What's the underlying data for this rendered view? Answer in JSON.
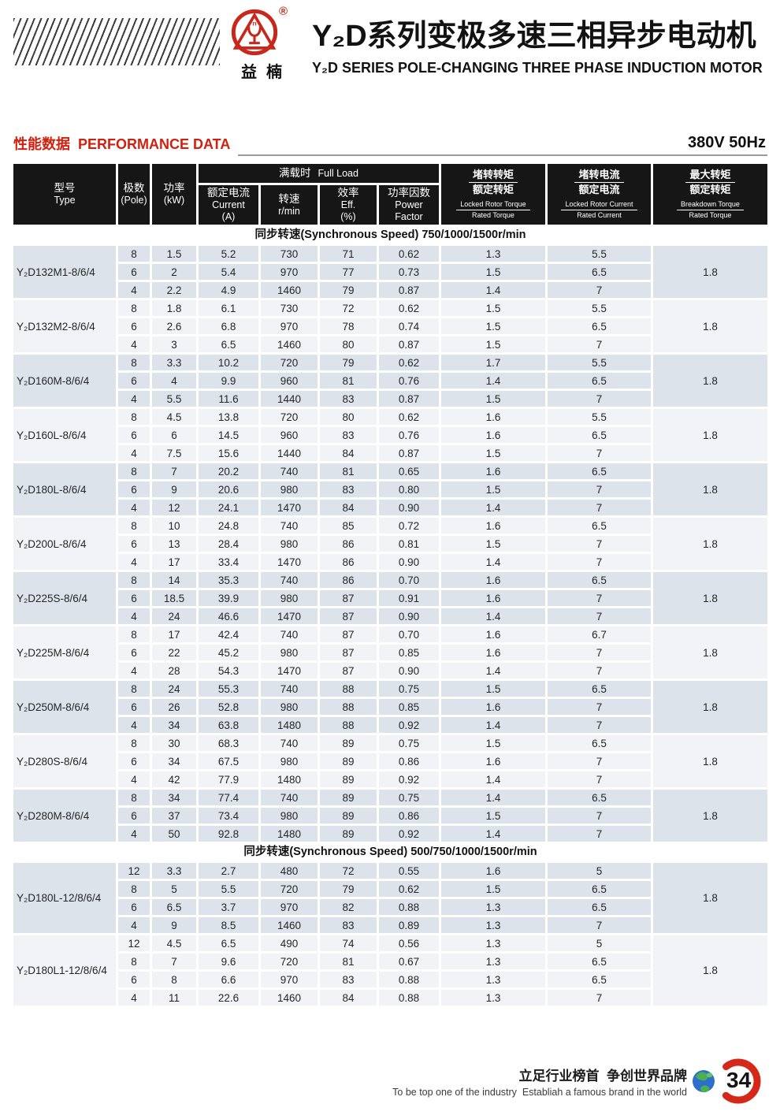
{
  "header": {
    "brand_name": "益楠",
    "registered": "®",
    "logo_letter": "n",
    "title_zh": "Y₂D系列变极多速三相异步电动机",
    "title_en": "Y₂D SERIES POLE-CHANGING THREE PHASE INDUCTION MOTOR"
  },
  "section_heading": {
    "zh": "性能数据",
    "en": "PERFORMANCE DATA",
    "rating": "380V 50Hz"
  },
  "table": {
    "columns": {
      "type": {
        "zh": "型号",
        "en": "Type"
      },
      "pole": {
        "zh": "极数",
        "en": "(Pole)"
      },
      "power": {
        "zh": "功率",
        "en": "(kW)"
      },
      "full_load": {
        "zh": "满载时",
        "en": "Full Load"
      },
      "current": {
        "zh": "额定电流",
        "en": "Current",
        "unit": "(A)"
      },
      "speed": {
        "zh": "转速",
        "en": "r/min"
      },
      "efficiency": {
        "zh": "效率",
        "en": "Eff.",
        "unit": "(%)"
      },
      "power_factor": {
        "zh": "功率因数",
        "en1": "Power",
        "en2": "Factor"
      },
      "locked_rotor_torque": {
        "zh_num": "堵转转矩",
        "zh_den": "额定转矩",
        "en_num": "Locked Rotor Torque",
        "en_den": "Rated Torque"
      },
      "locked_rotor_current": {
        "zh_num": "堵转电流",
        "zh_den": "额定电流",
        "en_num": "Locked Rotor Current",
        "en_den": "Rated Current"
      },
      "breakdown_torque": {
        "zh_num": "最大转矩",
        "zh_den": "额定转矩",
        "en_num": "Breakdown Torque",
        "en_den": "Rated Torque"
      }
    },
    "sections": [
      {
        "speed_note": "同步转速(Synchronous Speed) 750/1000/1500r/min",
        "groups": [
          {
            "type": "Y₂D132M1-8/6/4",
            "max_torque": "1.8",
            "rows": [
              [
                "8",
                "1.5",
                "5.2",
                "730",
                "71",
                "0.62",
                "1.3",
                "5.5"
              ],
              [
                "6",
                "2",
                "5.4",
                "970",
                "77",
                "0.73",
                "1.5",
                "6.5"
              ],
              [
                "4",
                "2.2",
                "4.9",
                "1460",
                "79",
                "0.87",
                "1.4",
                "7"
              ]
            ]
          },
          {
            "type": "Y₂D132M2-8/6/4",
            "max_torque": "1.8",
            "rows": [
              [
                "8",
                "1.8",
                "6.1",
                "730",
                "72",
                "0.62",
                "1.5",
                "5.5"
              ],
              [
                "6",
                "2.6",
                "6.8",
                "970",
                "78",
                "0.74",
                "1.5",
                "6.5"
              ],
              [
                "4",
                "3",
                "6.5",
                "1460",
                "80",
                "0.87",
                "1.5",
                "7"
              ]
            ]
          },
          {
            "type": "Y₂D160M-8/6/4",
            "max_torque": "1.8",
            "rows": [
              [
                "8",
                "3.3",
                "10.2",
                "720",
                "79",
                "0.62",
                "1.7",
                "5.5"
              ],
              [
                "6",
                "4",
                "9.9",
                "960",
                "81",
                "0.76",
                "1.4",
                "6.5"
              ],
              [
                "4",
                "5.5",
                "11.6",
                "1440",
                "83",
                "0.87",
                "1.5",
                "7"
              ]
            ]
          },
          {
            "type": "Y₂D160L-8/6/4",
            "max_torque": "1.8",
            "rows": [
              [
                "8",
                "4.5",
                "13.8",
                "720",
                "80",
                "0.62",
                "1.6",
                "5.5"
              ],
              [
                "6",
                "6",
                "14.5",
                "960",
                "83",
                "0.76",
                "1.6",
                "6.5"
              ],
              [
                "4",
                "7.5",
                "15.6",
                "1440",
                "84",
                "0.87",
                "1.5",
                "7"
              ]
            ]
          },
          {
            "type": "Y₂D180L-8/6/4",
            "max_torque": "1.8",
            "rows": [
              [
                "8",
                "7",
                "20.2",
                "740",
                "81",
                "0.65",
                "1.6",
                "6.5"
              ],
              [
                "6",
                "9",
                "20.6",
                "980",
                "83",
                "0.80",
                "1.5",
                "7"
              ],
              [
                "4",
                "12",
                "24.1",
                "1470",
                "84",
                "0.90",
                "1.4",
                "7"
              ]
            ]
          },
          {
            "type": "Y₂D200L-8/6/4",
            "max_torque": "1.8",
            "rows": [
              [
                "8",
                "10",
                "24.8",
                "740",
                "85",
                "0.72",
                "1.6",
                "6.5"
              ],
              [
                "6",
                "13",
                "28.4",
                "980",
                "86",
                "0.81",
                "1.5",
                "7"
              ],
              [
                "4",
                "17",
                "33.4",
                "1470",
                "86",
                "0.90",
                "1.4",
                "7"
              ]
            ]
          },
          {
            "type": "Y₂D225S-8/6/4",
            "max_torque": "1.8",
            "rows": [
              [
                "8",
                "14",
                "35.3",
                "740",
                "86",
                "0.70",
                "1.6",
                "6.5"
              ],
              [
                "6",
                "18.5",
                "39.9",
                "980",
                "87",
                "0.91",
                "1.6",
                "7"
              ],
              [
                "4",
                "24",
                "46.6",
                "1470",
                "87",
                "0.90",
                "1.4",
                "7"
              ]
            ]
          },
          {
            "type": "Y₂D225M-8/6/4",
            "max_torque": "1.8",
            "rows": [
              [
                "8",
                "17",
                "42.4",
                "740",
                "87",
                "0.70",
                "1.6",
                "6.7"
              ],
              [
                "6",
                "22",
                "45.2",
                "980",
                "87",
                "0.85",
                "1.6",
                "7"
              ],
              [
                "4",
                "28",
                "54.3",
                "1470",
                "87",
                "0.90",
                "1.4",
                "7"
              ]
            ]
          },
          {
            "type": "Y₂D250M-8/6/4",
            "max_torque": "1.8",
            "rows": [
              [
                "8",
                "24",
                "55.3",
                "740",
                "88",
                "0.75",
                "1.5",
                "6.5"
              ],
              [
                "6",
                "26",
                "52.8",
                "980",
                "88",
                "0.85",
                "1.6",
                "7"
              ],
              [
                "4",
                "34",
                "63.8",
                "1480",
                "88",
                "0.92",
                "1.4",
                "7"
              ]
            ]
          },
          {
            "type": "Y₂D280S-8/6/4",
            "max_torque": "1.8",
            "rows": [
              [
                "8",
                "30",
                "68.3",
                "740",
                "89",
                "0.75",
                "1.5",
                "6.5"
              ],
              [
                "6",
                "34",
                "67.5",
                "980",
                "89",
                "0.86",
                "1.6",
                "7"
              ],
              [
                "4",
                "42",
                "77.9",
                "1480",
                "89",
                "0.92",
                "1.4",
                "7"
              ]
            ]
          },
          {
            "type": "Y₂D280M-8/6/4",
            "max_torque": "1.8",
            "rows": [
              [
                "8",
                "34",
                "77.4",
                "740",
                "89",
                "0.75",
                "1.4",
                "6.5"
              ],
              [
                "6",
                "37",
                "73.4",
                "980",
                "89",
                "0.86",
                "1.5",
                "7"
              ],
              [
                "4",
                "50",
                "92.8",
                "1480",
                "89",
                "0.92",
                "1.4",
                "7"
              ]
            ]
          }
        ]
      },
      {
        "speed_note": "同步转速(Synchronous Speed) 500/750/1000/1500r/min",
        "groups": [
          {
            "type": "Y₂D180L-12/8/6/4",
            "max_torque": "1.8",
            "rows": [
              [
                "12",
                "3.3",
                "2.7",
                "480",
                "72",
                "0.55",
                "1.6",
                "5"
              ],
              [
                "8",
                "5",
                "5.5",
                "720",
                "79",
                "0.62",
                "1.5",
                "6.5"
              ],
              [
                "6",
                "6.5",
                "3.7",
                "970",
                "82",
                "0.88",
                "1.3",
                "6.5"
              ],
              [
                "4",
                "9",
                "8.5",
                "1460",
                "83",
                "0.89",
                "1.3",
                "7"
              ]
            ]
          },
          {
            "type": "Y₂D180L1-12/8/6/4",
            "max_torque": "1.8",
            "rows": [
              [
                "12",
                "4.5",
                "6.5",
                "490",
                "74",
                "0.56",
                "1.3",
                "5"
              ],
              [
                "8",
                "7",
                "9.6",
                "720",
                "81",
                "0.67",
                "1.3",
                "6.5"
              ],
              [
                "6",
                "8",
                "6.6",
                "970",
                "83",
                "0.88",
                "1.3",
                "6.5"
              ],
              [
                "4",
                "11",
                "22.6",
                "1460",
                "84",
                "0.88",
                "1.3",
                "7"
              ]
            ]
          }
        ]
      }
    ]
  },
  "footer": {
    "slogan_zh": "立足行业榜首  争创世界品牌",
    "slogan_en": "To be top one of the industry  Establiah a famous brand in the world",
    "page_number": "34"
  },
  "colors": {
    "brand_red": "#c8281c",
    "heading_red": "#d0200f",
    "row_shade": "#dce3ea",
    "row_plain": "#f1f3f6",
    "header_black": "#161616"
  }
}
